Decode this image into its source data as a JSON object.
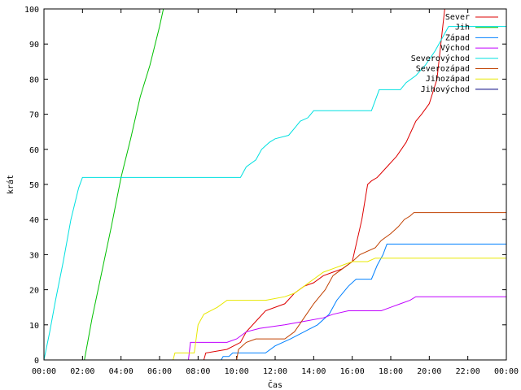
{
  "chart_data": {
    "type": "line",
    "xlabel": "Čas",
    "ylabel": "krát",
    "xlim": [
      0,
      24
    ],
    "ylim": [
      0,
      100
    ],
    "x_ticks": [
      0,
      2,
      4,
      6,
      8,
      10,
      12,
      14,
      16,
      18,
      20,
      22,
      24
    ],
    "x_tick_labels": [
      "00:00",
      "02:00",
      "04:00",
      "06:00",
      "08:00",
      "10:00",
      "12:00",
      "14:00",
      "16:00",
      "18:00",
      "20:00",
      "22:00",
      "00:00"
    ],
    "y_ticks": [
      0,
      10,
      20,
      30,
      40,
      50,
      60,
      70,
      80,
      90,
      100
    ],
    "y_tick_labels": [
      "0",
      "10",
      "20",
      "30",
      "40",
      "50",
      "60",
      "70",
      "80",
      "90",
      "100"
    ],
    "grid": false,
    "legend_position": "top-right",
    "series": [
      {
        "name": "Sever",
        "color": "#dd0000",
        "points": [
          [
            8.3,
            0
          ],
          [
            8.4,
            2
          ],
          [
            9.5,
            3
          ],
          [
            10.2,
            5
          ],
          [
            10.5,
            8
          ],
          [
            11.0,
            11
          ],
          [
            11.5,
            14
          ],
          [
            12.5,
            16
          ],
          [
            13.0,
            19
          ],
          [
            13.5,
            21
          ],
          [
            14.0,
            22
          ],
          [
            14.5,
            24
          ],
          [
            15.0,
            25
          ],
          [
            15.5,
            26
          ],
          [
            16.0,
            28
          ],
          [
            16.5,
            40
          ],
          [
            16.8,
            50
          ],
          [
            17.0,
            51
          ],
          [
            17.3,
            52
          ],
          [
            17.8,
            55
          ],
          [
            18.3,
            58
          ],
          [
            18.8,
            62
          ],
          [
            19.3,
            68
          ],
          [
            19.6,
            70
          ],
          [
            20.0,
            73
          ],
          [
            20.4,
            80
          ],
          [
            20.6,
            90
          ],
          [
            20.8,
            100
          ]
        ]
      },
      {
        "name": "Jih",
        "color": "#00c000",
        "points": [
          [
            2.1,
            0
          ],
          [
            2.5,
            12
          ],
          [
            3.0,
            25
          ],
          [
            3.5,
            38
          ],
          [
            4.0,
            52
          ],
          [
            4.5,
            63
          ],
          [
            5.0,
            75
          ],
          [
            5.5,
            84
          ],
          [
            6.0,
            95
          ],
          [
            6.2,
            100
          ]
        ]
      },
      {
        "name": "Západ",
        "color": "#0080ff",
        "points": [
          [
            9.2,
            0
          ],
          [
            9.3,
            1
          ],
          [
            9.6,
            1
          ],
          [
            9.8,
            2
          ],
          [
            11.5,
            2
          ],
          [
            12.0,
            4
          ],
          [
            12.8,
            6
          ],
          [
            13.5,
            8
          ],
          [
            14.2,
            10
          ],
          [
            14.8,
            13
          ],
          [
            15.2,
            17
          ],
          [
            15.5,
            19
          ],
          [
            15.8,
            21
          ],
          [
            16.2,
            23
          ],
          [
            17.0,
            23
          ],
          [
            17.3,
            27
          ],
          [
            17.6,
            30
          ],
          [
            17.8,
            33
          ],
          [
            24,
            33
          ]
        ]
      },
      {
        "name": "Východ",
        "color": "#c000ff",
        "points": [
          [
            7.5,
            0
          ],
          [
            7.6,
            5
          ],
          [
            9.5,
            5
          ],
          [
            10.0,
            6
          ],
          [
            10.5,
            8
          ],
          [
            11.2,
            9
          ],
          [
            12.5,
            10
          ],
          [
            13.5,
            11
          ],
          [
            14.5,
            12
          ],
          [
            15.0,
            13
          ],
          [
            15.8,
            14
          ],
          [
            17.5,
            14
          ],
          [
            18.0,
            15
          ],
          [
            18.5,
            16
          ],
          [
            19.0,
            17
          ],
          [
            19.3,
            18
          ],
          [
            24,
            18
          ]
        ]
      },
      {
        "name": "Severovýchod",
        "color": "#00e0e0",
        "points": [
          [
            0,
            0
          ],
          [
            0.3,
            8
          ],
          [
            0.6,
            17
          ],
          [
            1.0,
            28
          ],
          [
            1.4,
            40
          ],
          [
            1.8,
            49
          ],
          [
            2.0,
            52
          ],
          [
            10.2,
            52
          ],
          [
            10.5,
            55
          ],
          [
            11.0,
            57
          ],
          [
            11.3,
            60
          ],
          [
            11.7,
            62
          ],
          [
            12.0,
            63
          ],
          [
            12.7,
            64
          ],
          [
            13.0,
            66
          ],
          [
            13.3,
            68
          ],
          [
            13.7,
            69
          ],
          [
            14.0,
            71
          ],
          [
            17.0,
            71
          ],
          [
            17.2,
            74
          ],
          [
            17.4,
            77
          ],
          [
            18.5,
            77
          ],
          [
            18.8,
            79
          ],
          [
            19.3,
            81
          ],
          [
            19.8,
            84
          ],
          [
            20.3,
            88
          ],
          [
            20.7,
            92
          ],
          [
            21.0,
            95
          ],
          [
            24,
            95
          ]
        ]
      },
      {
        "name": "Severozápad",
        "color": "#c04000",
        "points": [
          [
            10.0,
            0
          ],
          [
            10.1,
            3
          ],
          [
            10.5,
            5
          ],
          [
            11.0,
            6
          ],
          [
            12.5,
            6
          ],
          [
            13.0,
            8
          ],
          [
            13.5,
            12
          ],
          [
            14.0,
            16
          ],
          [
            14.3,
            18
          ],
          [
            14.6,
            20
          ],
          [
            15.0,
            24
          ],
          [
            15.5,
            26
          ],
          [
            16.0,
            28
          ],
          [
            16.4,
            30
          ],
          [
            17.2,
            32
          ],
          [
            17.5,
            34
          ],
          [
            18.0,
            36
          ],
          [
            18.4,
            38
          ],
          [
            18.7,
            40
          ],
          [
            19.0,
            41
          ],
          [
            19.2,
            42
          ],
          [
            24,
            42
          ]
        ]
      },
      {
        "name": "Jihozápad",
        "color": "#e8e800",
        "points": [
          [
            6.7,
            0
          ],
          [
            6.8,
            2
          ],
          [
            7.8,
            2
          ],
          [
            8.0,
            10
          ],
          [
            8.3,
            13
          ],
          [
            9.0,
            15
          ],
          [
            9.5,
            17
          ],
          [
            11.5,
            17
          ],
          [
            12.5,
            18
          ],
          [
            13.0,
            19
          ],
          [
            13.5,
            21
          ],
          [
            14.0,
            23
          ],
          [
            14.5,
            25
          ],
          [
            15.0,
            26
          ],
          [
            15.5,
            27
          ],
          [
            16.0,
            28
          ],
          [
            16.8,
            28
          ],
          [
            17.2,
            29
          ],
          [
            24,
            29
          ]
        ]
      },
      {
        "name": "Jihovýchod",
        "color": "#000080",
        "points": []
      }
    ]
  }
}
